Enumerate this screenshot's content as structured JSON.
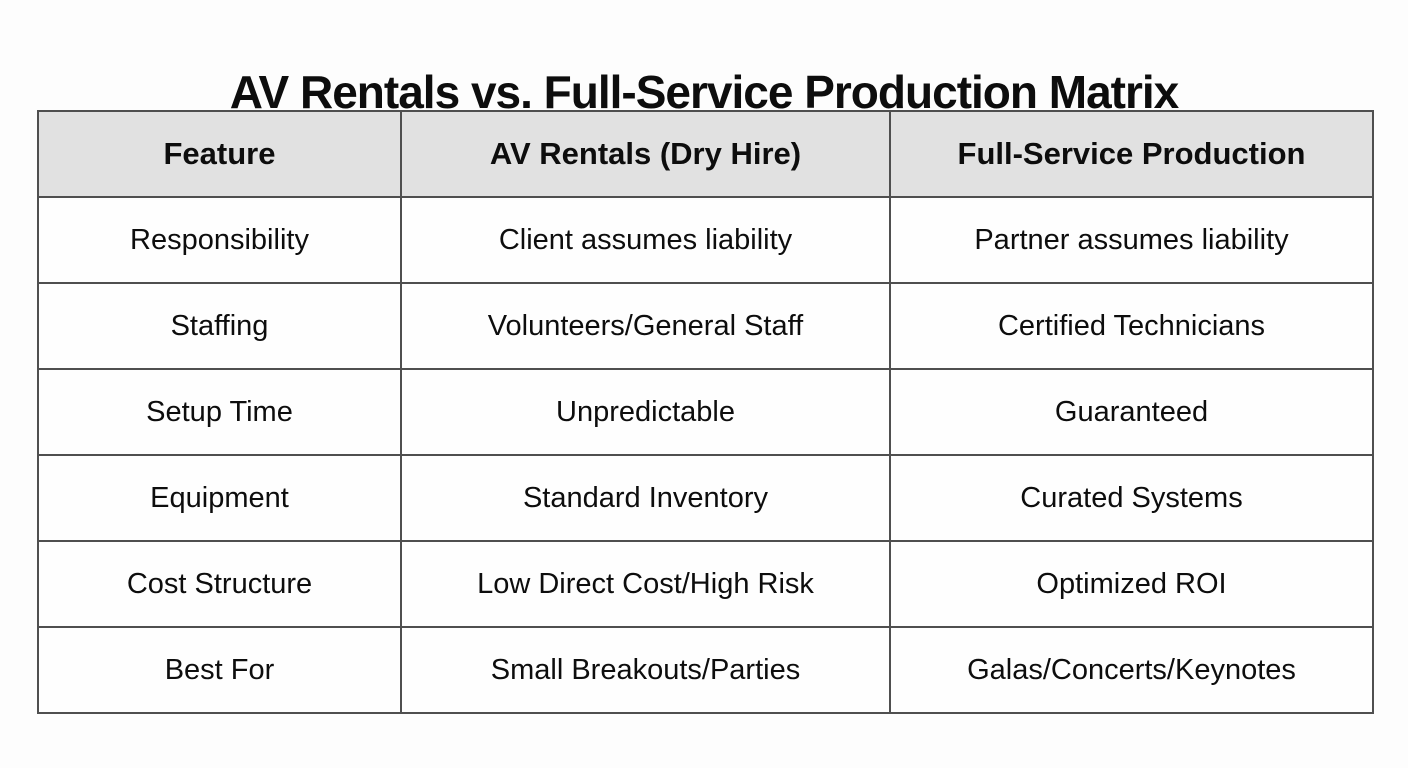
{
  "page": {
    "title": "AV Rentals vs. Full-Service Production Matrix",
    "background_color": "#fdfdfd",
    "text_color": "#0d0d0d"
  },
  "table_style": {
    "header_bg": "#e1e1e1",
    "border_color": "#4f4f4f"
  },
  "chart_data": {
    "type": "table",
    "title": "AV Rentals vs. Full-Service Production Matrix",
    "columns": [
      "Feature",
      "AV Rentals (Dry Hire)",
      "Full-Service Production"
    ],
    "rows": [
      [
        "Responsibility",
        "Client assumes liability",
        "Partner assumes liability"
      ],
      [
        "Staffing",
        "Volunteers/General Staff",
        "Certified Technicians"
      ],
      [
        "Setup Time",
        "Unpredictable",
        "Guaranteed"
      ],
      [
        "Equipment",
        "Standard Inventory",
        "Curated Systems"
      ],
      [
        "Cost Structure",
        "Low Direct Cost/High Risk",
        "Optimized ROI"
      ],
      [
        "Best For",
        "Small Breakouts/Parties",
        "Galas/Concerts/Keynotes"
      ]
    ],
    "layout": "3-column comparison matrix, header row shaded gray, all cells center-aligned"
  }
}
